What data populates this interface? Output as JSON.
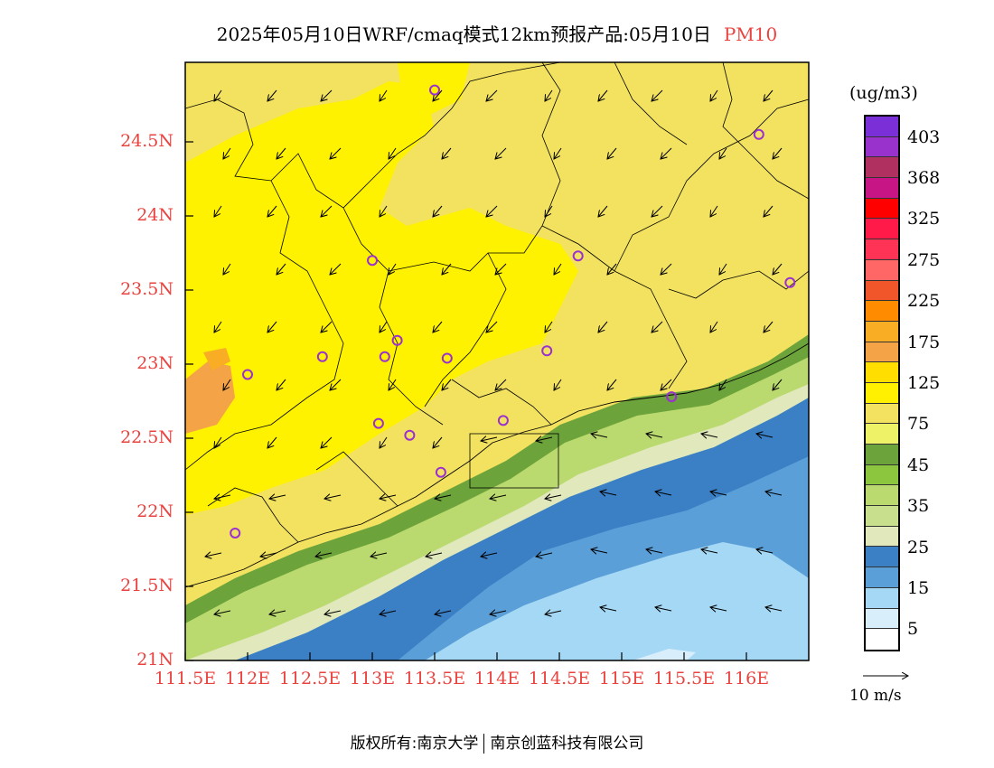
{
  "title": {
    "main": "2025年05月10日WRF/cmaq模式12km预报产品:05月10日",
    "pollutant": "PM10"
  },
  "lat_labels": [
    "24.5N",
    "24N",
    "23.5N",
    "23N",
    "22.5N",
    "22N",
    "21.5N",
    "21N"
  ],
  "lon_labels": [
    "111.5E",
    "112E",
    "112.5E",
    "113E",
    "113.5E",
    "114E",
    "114.5E",
    "115E",
    "115.5E",
    "116E"
  ],
  "colorbar": {
    "unit": "(ug/m3)",
    "colors": [
      "#7b2fd6",
      "#9932cc",
      "#b03060",
      "#c71585",
      "#ff0000",
      "#ff1a4a",
      "#ff3355",
      "#ff6666",
      "#f0562a",
      "#ff8c00",
      "#f9ad25",
      "#f5a347",
      "#ffde00",
      "#ffef00",
      "#f2e260",
      "#eef266",
      "#6ca33a",
      "#8cc63f",
      "#bada6f",
      "#c8df8e",
      "#e0e8bc",
      "#3b7fc4",
      "#5a9fd8",
      "#a5d8f5",
      "#d8eefa",
      "#ffffff"
    ],
    "tick_labels": [
      "403",
      "368",
      "325",
      "275",
      "225",
      "175",
      "125",
      "75",
      "45",
      "35",
      "25",
      "15",
      "5"
    ]
  },
  "wind_legend": "10 m/s",
  "footer": {
    "copyright": "版权所有:南京大学",
    "company": "南京创蓝科技有限公司"
  },
  "map_colors": {
    "land_high": "#fff200",
    "land_mid": "#f2e260",
    "land_low": "#eef266",
    "orange": "#f5a347",
    "coast_green": "#6ca33a",
    "coast_lightgreen": "#bada6f",
    "coast_pale": "#e0e8bc",
    "sea_dark": "#3b7fc4",
    "sea_mid": "#5a9fd8",
    "sea_light": "#a5d8f5",
    "station": "#9b30d0"
  },
  "stations": [
    {
      "lon": 113.5,
      "lat": 24.85
    },
    {
      "lon": 116.1,
      "lat": 24.55
    },
    {
      "lon": 113.0,
      "lat": 23.7
    },
    {
      "lon": 114.65,
      "lat": 23.73
    },
    {
      "lon": 116.35,
      "lat": 23.55
    },
    {
      "lon": 112.0,
      "lat": 22.93
    },
    {
      "lon": 112.6,
      "lat": 23.05
    },
    {
      "lon": 113.1,
      "lat": 23.05
    },
    {
      "lon": 113.2,
      "lat": 23.16
    },
    {
      "lon": 113.6,
      "lat": 23.04
    },
    {
      "lon": 114.4,
      "lat": 23.09
    },
    {
      "lon": 115.4,
      "lat": 22.78
    },
    {
      "lon": 113.05,
      "lat": 22.6
    },
    {
      "lon": 113.3,
      "lat": 22.52
    },
    {
      "lon": 114.05,
      "lat": 22.62
    },
    {
      "lon": 113.55,
      "lat": 22.27
    },
    {
      "lon": 111.9,
      "lat": 21.86
    }
  ]
}
